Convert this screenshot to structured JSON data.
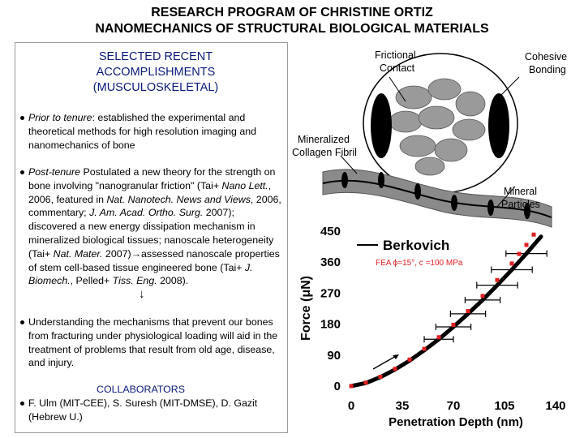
{
  "header": {
    "title": [
      "RESEARCH PROGRAM OF CHRISTINE ORTIZ",
      "NANOMECHANICS OF STRUCTURAL BIOLOGICAL MATERIALS"
    ]
  },
  "panel": {
    "heading": [
      "SELECTED RECENT",
      "ACCOMPLISHMENTS",
      "(MUSCULOSKELETAL)"
    ],
    "bullets": [
      [
        "Prior to tenure",
        ": established the experimental and theoretical methods for high resolution imaging and nanomechanics of bone"
      ],
      [
        "Post-tenure",
        " Postulated a new theory for the strength on bone involving \"nanogranular friction\" (Tai+ ",
        "Nano Lett.",
        ", 2006, featured in ",
        "Nat. Nanotech. News and Views",
        ", 2006, commentary; ",
        "J. Am. Acad. Ortho. Surg.",
        " 2007); discovered a new energy dissipation mechanism in mineralized biological tissues; nanoscale heterogeneity (Tai+ ",
        "Nat. Mater.",
        " 2007)→assessed nanoscale properties of stem cell-based tissue engineered bone (Tai+ ",
        "J. Biomech.",
        ", Pelled+ ",
        "Tiss. Eng.",
        " 2008)."
      ],
      [
        "Understanding the mechanisms that prevent our bones from fracturing under physiological loading will aid in the treatment of problems that result from old age, disease, and injury."
      ]
    ],
    "arrow": "↓",
    "collaborators_heading": "COLLABORATORS",
    "collaborators": "F. Ulm (MIT-CEE), S. Suresh (MIT-DMSE), D. Gazit (Hebrew U.)"
  },
  "figure": {
    "labels": {
      "frictional": [
        "Frictional",
        "Contact"
      ],
      "cohesive": [
        "Cohesive",
        "Bonding"
      ],
      "fibril": [
        "Mineralized",
        "Collagen Fibril"
      ],
      "particles": [
        "Mineral",
        "Particles"
      ]
    },
    "plot": {
      "type": "scatter",
      "x_label": "Penetration Depth (nm)",
      "y_label": "Force (μN)",
      "xlim": [
        0,
        140
      ],
      "ylim": [
        0,
        450
      ],
      "xticks": [
        0,
        35,
        70,
        105,
        140
      ],
      "yticks": [
        0,
        90,
        180,
        270,
        360,
        450
      ],
      "series": [
        {
          "name": "Berkovich",
          "color": "#000000",
          "x": [
            0,
            10,
            20,
            30,
            40,
            50,
            60,
            70,
            80,
            90,
            100,
            110,
            120,
            130
          ],
          "values": [
            0,
            9,
            26,
            48,
            74,
            104,
            136,
            172,
            210,
            250,
            293,
            338,
            385,
            434
          ]
        },
        {
          "name": "FEA ϕ=15°, c =100 MPa",
          "color": "#e02020",
          "x": [
            0,
            10,
            20,
            30,
            40,
            50,
            60,
            70,
            80,
            90,
            100,
            110,
            115,
            120,
            125
          ],
          "values": [
            0,
            10,
            27,
            50,
            77,
            108,
            142,
            178,
            218,
            262,
            308,
            356,
            384,
            410,
            440
          ]
        }
      ],
      "error_bars": {
        "x": [
          60,
          70,
          80,
          90,
          100,
          110,
          120
        ],
        "values": [
          136,
          172,
          210,
          250,
          293,
          338,
          385
        ],
        "xerr": [
          10,
          12,
          12,
          12,
          14,
          14,
          14
        ]
      }
    }
  }
}
